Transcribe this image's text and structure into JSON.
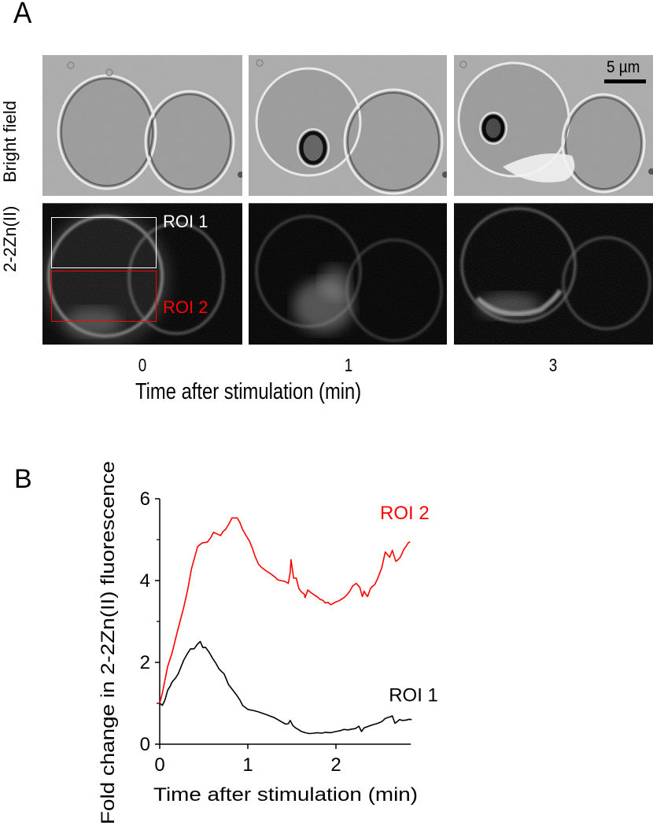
{
  "figure": {
    "panel_a_label": "A",
    "panel_b_label": "B",
    "panel_a": {
      "row_labels": [
        "Bright field",
        "2-2Zn(II)"
      ],
      "time_labels": [
        "0",
        "1",
        "3"
      ],
      "x_title": "Time after stimulation (min)",
      "scale_bar": "5 µm",
      "roi_labels": [
        {
          "text": "ROI 1",
          "color": "#ffffff"
        },
        {
          "text": "ROI 2",
          "color": "#ff0000"
        }
      ]
    }
  },
  "chart_data": {
    "type": "line",
    "title": "",
    "xlabel": "Time after stimulation (min)",
    "ylabel": "Fold change in 2-2Zn(II) fluorescence",
    "xlim": [
      0,
      2.85
    ],
    "ylim": [
      0,
      6
    ],
    "x_ticks": [
      "0",
      "1",
      "2"
    ],
    "y_ticks": [
      "0",
      "2",
      "4",
      "6"
    ],
    "y_minor_ticks": [
      1,
      3,
      5
    ],
    "grid": false,
    "legend": "inline labels",
    "series": [
      {
        "name": "ROI 2",
        "color": "#ff0000",
        "label_position": [
          2.5,
          5.5
        ],
        "x": [
          0,
          0.03,
          0.09,
          0.14,
          0.2,
          0.27,
          0.32,
          0.36,
          0.43,
          0.48,
          0.54,
          0.58,
          0.61,
          0.65,
          0.69,
          0.72,
          0.75,
          0.79,
          0.82,
          0.88,
          0.91,
          0.94,
          0.98,
          1.02,
          1.05,
          1.08,
          1.12,
          1.15,
          1.18,
          1.22,
          1.25,
          1.3,
          1.34,
          1.37,
          1.4,
          1.43,
          1.46,
          1.48,
          1.49,
          1.52,
          1.55,
          1.58,
          1.61,
          1.64,
          1.65,
          1.68,
          1.72,
          1.76,
          1.79,
          1.82,
          1.85,
          1.88,
          1.91,
          1.94,
          1.97,
          2.0,
          2.03,
          2.06,
          2.09,
          2.12,
          2.16,
          2.19,
          2.23,
          2.27,
          2.3,
          2.32,
          2.34,
          2.36,
          2.39,
          2.41,
          2.44,
          2.47,
          2.52,
          2.56,
          2.59,
          2.61,
          2.64,
          2.66,
          2.68,
          2.71,
          2.73,
          2.75,
          2.77,
          2.8,
          2.82,
          2.84
        ],
        "y": [
          1.0,
          1.25,
          1.9,
          2.23,
          2.75,
          3.32,
          3.8,
          4.28,
          4.83,
          4.92,
          4.94,
          5.05,
          5.18,
          5.14,
          5.1,
          5.2,
          5.26,
          5.4,
          5.53,
          5.53,
          5.42,
          5.25,
          5.1,
          4.96,
          4.8,
          4.6,
          4.41,
          4.33,
          4.28,
          4.22,
          4.18,
          4.1,
          4.02,
          4.0,
          3.99,
          3.97,
          3.93,
          4.2,
          4.51,
          4.06,
          4.06,
          3.8,
          3.72,
          3.67,
          3.58,
          3.77,
          3.7,
          3.64,
          3.6,
          3.54,
          3.52,
          3.45,
          3.47,
          3.41,
          3.44,
          3.48,
          3.5,
          3.54,
          3.58,
          3.64,
          3.75,
          3.87,
          3.93,
          3.84,
          3.61,
          3.74,
          3.66,
          3.61,
          3.8,
          3.85,
          3.9,
          4.03,
          4.31,
          4.7,
          4.62,
          4.57,
          4.74,
          4.6,
          4.47,
          4.52,
          4.57,
          4.66,
          4.76,
          4.85,
          4.92,
          4.95
        ]
      },
      {
        "name": "ROI 1",
        "color": "#000000",
        "label_position": [
          2.6,
          1.05
        ],
        "x": [
          0,
          0.03,
          0.06,
          0.09,
          0.12,
          0.14,
          0.18,
          0.21,
          0.24,
          0.27,
          0.31,
          0.35,
          0.39,
          0.43,
          0.46,
          0.49,
          0.52,
          0.56,
          0.6,
          0.64,
          0.67,
          0.7,
          0.73,
          0.78,
          0.83,
          0.87,
          0.91,
          0.94,
          1.0,
          1.07,
          1.12,
          1.16,
          1.2,
          1.25,
          1.3,
          1.34,
          1.38,
          1.43,
          1.46,
          1.48,
          1.51,
          1.54,
          1.58,
          1.61,
          1.65,
          1.7,
          1.75,
          1.79,
          1.84,
          1.88,
          1.94,
          2.0,
          2.05,
          2.09,
          2.14,
          2.18,
          2.22,
          2.26,
          2.29,
          2.32,
          2.36,
          2.41,
          2.46,
          2.5,
          2.53,
          2.56,
          2.6,
          2.64,
          2.67,
          2.7,
          2.72,
          2.76,
          2.8,
          2.83,
          2.86
        ],
        "y": [
          1.0,
          0.95,
          1.08,
          1.32,
          1.42,
          1.52,
          1.62,
          1.72,
          1.88,
          2.04,
          2.2,
          2.33,
          2.33,
          2.45,
          2.51,
          2.36,
          2.37,
          2.25,
          2.1,
          1.97,
          1.85,
          1.78,
          1.72,
          1.46,
          1.32,
          1.21,
          1.08,
          0.95,
          0.85,
          0.82,
          0.79,
          0.76,
          0.73,
          0.69,
          0.65,
          0.6,
          0.55,
          0.49,
          0.5,
          0.58,
          0.46,
          0.4,
          0.35,
          0.31,
          0.28,
          0.26,
          0.27,
          0.28,
          0.27,
          0.29,
          0.28,
          0.31,
          0.33,
          0.36,
          0.35,
          0.37,
          0.38,
          0.44,
          0.31,
          0.4,
          0.43,
          0.47,
          0.5,
          0.53,
          0.57,
          0.63,
          0.66,
          0.69,
          0.51,
          0.56,
          0.6,
          0.58,
          0.59,
          0.61,
          0.6
        ]
      }
    ]
  }
}
